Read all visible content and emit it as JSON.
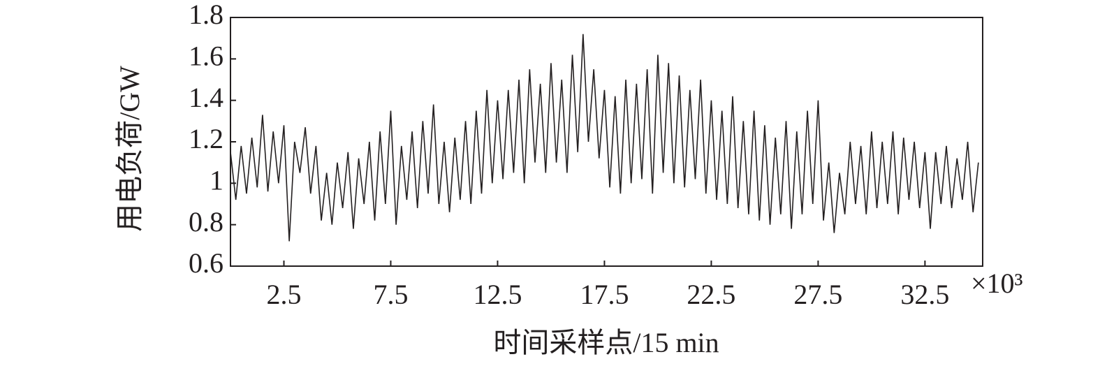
{
  "chart_data": {
    "type": "line",
    "x_label": "时间采样点/15 min",
    "y_label": "用电负荷/GW",
    "x_multiplier": "×10³",
    "xlim": [
      0,
      35.2
    ],
    "xticks": [
      2.5,
      7.5,
      12.5,
      17.5,
      22.5,
      27.5,
      32.5
    ],
    "ylim": [
      0.6,
      1.8
    ],
    "yticks": [
      0.6,
      0.8,
      1.0,
      1.2,
      1.4,
      1.6,
      1.8
    ],
    "color": "#231f20",
    "x": [
      0,
      0.25,
      0.5,
      0.75,
      1,
      1.25,
      1.5,
      1.75,
      2,
      2.25,
      2.5,
      2.75,
      3,
      3.25,
      3.5,
      3.75,
      4,
      4.25,
      4.5,
      4.75,
      5,
      5.25,
      5.5,
      5.75,
      6,
      6.25,
      6.5,
      6.75,
      7,
      7.25,
      7.5,
      7.75,
      8,
      8.25,
      8.5,
      8.75,
      9,
      9.25,
      9.5,
      9.75,
      10,
      10.25,
      10.5,
      10.75,
      11,
      11.25,
      11.5,
      11.75,
      12,
      12.25,
      12.5,
      12.75,
      13,
      13.25,
      13.5,
      13.75,
      14,
      14.25,
      14.5,
      14.75,
      15,
      15.25,
      15.5,
      15.75,
      16,
      16.25,
      16.5,
      16.75,
      17,
      17.25,
      17.5,
      17.75,
      18,
      18.25,
      18.5,
      18.75,
      19,
      19.25,
      19.5,
      19.75,
      20,
      20.25,
      20.5,
      20.75,
      21,
      21.25,
      21.5,
      21.75,
      22,
      22.25,
      22.5,
      22.75,
      23,
      23.25,
      23.5,
      23.75,
      24,
      24.25,
      24.5,
      24.75,
      25,
      25.25,
      25.5,
      25.75,
      26,
      26.25,
      26.5,
      26.75,
      27,
      27.25,
      27.5,
      27.75,
      28,
      28.25,
      28.5,
      28.75,
      29,
      29.25,
      29.5,
      29.75,
      30,
      30.25,
      30.5,
      30.75,
      31,
      31.25,
      31.5,
      31.75,
      32,
      32.25,
      32.5,
      32.75,
      33,
      33.25,
      33.5,
      33.75,
      34,
      34.25,
      34.5,
      34.75,
      35
    ],
    "values": [
      1.15,
      0.92,
      1.18,
      0.95,
      1.22,
      0.98,
      1.33,
      0.96,
      1.25,
      1.0,
      1.28,
      0.72,
      1.2,
      1.05,
      1.27,
      0.95,
      1.18,
      0.82,
      1.05,
      0.8,
      1.1,
      0.88,
      1.15,
      0.78,
      1.12,
      0.9,
      1.2,
      0.82,
      1.25,
      0.9,
      1.35,
      0.8,
      1.18,
      0.92,
      1.25,
      0.88,
      1.3,
      0.95,
      1.38,
      0.9,
      1.2,
      0.86,
      1.22,
      0.92,
      1.3,
      0.9,
      1.35,
      0.95,
      1.45,
      1.0,
      1.4,
      1.02,
      1.45,
      1.05,
      1.5,
      1.0,
      1.55,
      1.1,
      1.48,
      1.05,
      1.58,
      1.1,
      1.5,
      1.05,
      1.62,
      1.15,
      1.72,
      1.2,
      1.55,
      1.12,
      1.45,
      0.98,
      1.42,
      0.95,
      1.5,
      1.0,
      1.48,
      1.02,
      1.55,
      0.95,
      1.62,
      1.05,
      1.58,
      1.0,
      1.52,
      0.98,
      1.45,
      1.02,
      1.5,
      0.95,
      1.4,
      0.92,
      1.35,
      0.9,
      1.42,
      0.88,
      1.3,
      0.85,
      1.35,
      0.82,
      1.28,
      0.8,
      1.22,
      0.85,
      1.3,
      0.78,
      1.25,
      0.85,
      1.35,
      0.9,
      1.4,
      0.82,
      1.1,
      0.76,
      1.05,
      0.85,
      1.2,
      0.9,
      1.18,
      0.85,
      1.25,
      0.88,
      1.2,
      0.9,
      1.25,
      0.85,
      1.22,
      0.92,
      1.2,
      0.88,
      1.15,
      0.78,
      1.15,
      0.9,
      1.18,
      0.88,
      1.12,
      0.92,
      1.2,
      0.86,
      1.1
    ]
  }
}
